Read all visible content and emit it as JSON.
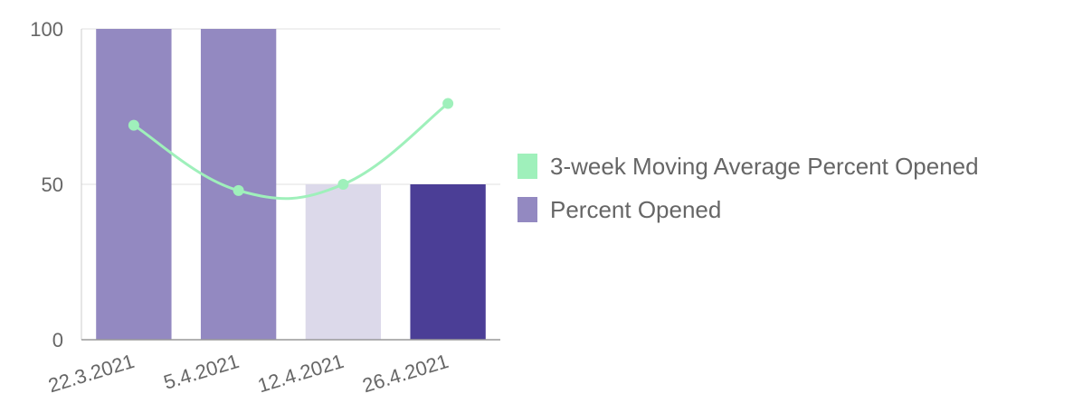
{
  "chart_data": {
    "type": "bar",
    "categories": [
      "22.3.2021",
      "5.4.2021",
      "12.4.2021",
      "26.4.2021"
    ],
    "series": [
      {
        "name": "Percent Opened",
        "type": "bar",
        "values": [
          100,
          100,
          50,
          50
        ],
        "colors": [
          "#9389c1",
          "#9389c1",
          "#dcd9ea",
          "#4b3e96"
        ]
      },
      {
        "name": "3-week Moving Average Percent Opened",
        "type": "line",
        "values": [
          69,
          48,
          50,
          76
        ],
        "color": "#9ff0bb"
      }
    ],
    "ylim": [
      0,
      100
    ],
    "yticks": [
      0,
      50,
      100
    ],
    "grid": true,
    "legend": "right"
  },
  "legend": {
    "items": [
      {
        "label": "3-week Moving Average Percent Opened",
        "color": "#9ff0bb"
      },
      {
        "label": "Percent Opened",
        "color": "#9389c1"
      }
    ]
  }
}
